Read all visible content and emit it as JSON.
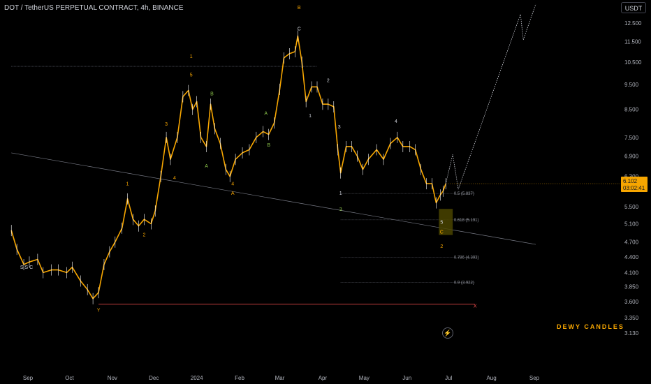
{
  "header": {
    "title": "DOT / TetherUS PERPETUAL CONTRACT, 4h, BINANCE",
    "currency": "USDT"
  },
  "brand": "DEWY CANDLES",
  "icons": {
    "lightning": "lightning-icon"
  },
  "colors": {
    "candle": "#f7a600",
    "wick": "#ffffff",
    "projection": "#d1d4dc",
    "trendline": "#787b86",
    "invalidation": "#ff5252",
    "box": "#4a4400",
    "price_label_bg": "#f7a600"
  },
  "chart_data": {
    "type": "line",
    "title": "DOT / TetherUS PERPETUAL CONTRACT, 4h, BINANCE",
    "ylabel": "USDT",
    "y_scale": "log",
    "ylim": [
      3.0,
      13.5
    ],
    "y_ticks": [
      "12.500",
      "11.500",
      "10.500",
      "9.500",
      "8.500",
      "7.500",
      "6.900",
      "6.300",
      "5.500",
      "5.100",
      "4.700",
      "4.400",
      "4.100",
      "3.850",
      "3.600",
      "3.350",
      "3.130"
    ],
    "x_ticks": [
      "Sep",
      "Oct",
      "Nov",
      "Dec",
      "2024",
      "Feb",
      "Mar",
      "Apr",
      "May",
      "Jun",
      "Jul",
      "Aug",
      "Sep"
    ],
    "current_price": {
      "price": "6.102",
      "countdown": "03:02:41"
    },
    "series": [
      {
        "values": [
          [
            "2023-08-20",
            4.95
          ],
          [
            "2023-08-24",
            4.55
          ],
          [
            "2023-08-29",
            4.25
          ],
          [
            "2023-09-02",
            4.3
          ],
          [
            "2023-09-08",
            4.35
          ],
          [
            "2023-09-12",
            4.1
          ],
          [
            "2023-09-18",
            4.15
          ],
          [
            "2023-09-23",
            4.15
          ],
          [
            "2023-09-29",
            4.1
          ],
          [
            "2023-10-03",
            4.2
          ],
          [
            "2023-10-09",
            3.95
          ],
          [
            "2023-10-14",
            3.8
          ],
          [
            "2023-10-18",
            3.65
          ],
          [
            "2023-10-22",
            3.75
          ],
          [
            "2023-10-26",
            4.25
          ],
          [
            "2023-10-30",
            4.5
          ],
          [
            "2023-11-03",
            4.7
          ],
          [
            "2023-11-08",
            5.0
          ],
          [
            "2023-11-12",
            5.7
          ],
          [
            "2023-11-16",
            5.2
          ],
          [
            "2023-11-20",
            5.05
          ],
          [
            "2023-11-24",
            5.2
          ],
          [
            "2023-11-29",
            5.1
          ],
          [
            "2023-12-02",
            5.4
          ],
          [
            "2023-12-06",
            6.3
          ],
          [
            "2023-12-10",
            7.5
          ],
          [
            "2023-12-13",
            6.8
          ],
          [
            "2023-12-18",
            7.5
          ],
          [
            "2023-12-22",
            9.0
          ],
          [
            "2023-12-26",
            9.25
          ],
          [
            "2023-12-29",
            8.5
          ],
          [
            "2024-01-01",
            8.8
          ],
          [
            "2024-01-04",
            7.5
          ],
          [
            "2024-01-08",
            7.2
          ],
          [
            "2024-01-11",
            8.7
          ],
          [
            "2024-01-14",
            7.8
          ],
          [
            "2024-01-18",
            7.3
          ],
          [
            "2024-01-22",
            6.5
          ],
          [
            "2024-01-25",
            6.3
          ],
          [
            "2024-01-29",
            6.8
          ],
          [
            "2024-02-03",
            7.0
          ],
          [
            "2024-02-08",
            7.1
          ],
          [
            "2024-02-13",
            7.5
          ],
          [
            "2024-02-18",
            7.7
          ],
          [
            "2024-02-22",
            7.6
          ],
          [
            "2024-02-26",
            8.0
          ],
          [
            "2024-03-01",
            9.3
          ],
          [
            "2024-03-04",
            10.7
          ],
          [
            "2024-03-08",
            10.9
          ],
          [
            "2024-03-12",
            11.0
          ],
          [
            "2024-03-14",
            11.8
          ],
          [
            "2024-03-17",
            10.5
          ],
          [
            "2024-03-20",
            8.8
          ],
          [
            "2024-03-24",
            9.4
          ],
          [
            "2024-03-28",
            9.4
          ],
          [
            "2024-04-01",
            8.7
          ],
          [
            "2024-04-05",
            8.7
          ],
          [
            "2024-04-09",
            8.6
          ],
          [
            "2024-04-12",
            7.1
          ],
          [
            "2024-04-14",
            6.4
          ],
          [
            "2024-04-18",
            7.2
          ],
          [
            "2024-04-22",
            7.2
          ],
          [
            "2024-04-26",
            6.9
          ],
          [
            "2024-04-30",
            6.5
          ],
          [
            "2024-05-04",
            6.8
          ],
          [
            "2024-05-10",
            7.1
          ],
          [
            "2024-05-15",
            6.8
          ],
          [
            "2024-05-20",
            7.3
          ],
          [
            "2024-05-25",
            7.5
          ],
          [
            "2024-05-29",
            7.2
          ],
          [
            "2024-06-03",
            7.2
          ],
          [
            "2024-06-07",
            7.1
          ],
          [
            "2024-06-11",
            6.5
          ],
          [
            "2024-06-15",
            6.1
          ],
          [
            "2024-06-19",
            6.1
          ],
          [
            "2024-06-22",
            5.6
          ],
          [
            "2024-06-25",
            5.8
          ],
          [
            "2024-06-27",
            5.9
          ],
          [
            "2024-06-29",
            6.1
          ]
        ]
      }
    ],
    "projection": [
      [
        "2024-06-29",
        6.1
      ],
      [
        "2024-07-04",
        6.95
      ],
      [
        "2024-07-08",
        5.95
      ],
      [
        "2024-08-22",
        13.0
      ],
      [
        "2024-08-24",
        11.6
      ],
      [
        "2024-09-02",
        13.6
      ]
    ],
    "horizontal_levels": [
      {
        "label": "",
        "price": 10.3,
        "color": "#787b86",
        "x_from": "2023-08-20",
        "x_to": "2024-03-28"
      },
      {
        "label": "X",
        "price": 3.56,
        "color": "#ff5252",
        "x_from": "2023-10-22",
        "x_to": "2024-07-20"
      }
    ],
    "fib_levels": [
      {
        "label": "0.5 (5.837)",
        "price": 5.837
      },
      {
        "label": "0.618 (5.191)",
        "price": 5.191
      },
      {
        "label": "0.786 (4.393)",
        "price": 4.393
      },
      {
        "label": "0.9 (3.922)",
        "price": 3.922
      }
    ],
    "fib_x": [
      "2024-04-14",
      "2024-07-20"
    ],
    "trendline": [
      [
        "2023-08-20",
        7.0
      ],
      [
        "2024-09-02",
        4.65
      ]
    ],
    "target_box": {
      "x": [
        "2024-06-24",
        "2024-07-04"
      ],
      "y": [
        4.85,
        5.45
      ]
    },
    "wave_labels": [
      {
        "text": "Y",
        "x": "2023-10-22",
        "y": 3.44,
        "color": "orange"
      },
      {
        "text": "1",
        "x": "2023-11-12",
        "y": 6.05,
        "color": "orange"
      },
      {
        "text": "2",
        "x": "2023-11-24",
        "y": 4.82,
        "color": "orange"
      },
      {
        "text": "3",
        "x": "2023-12-10",
        "y": 7.9,
        "color": "orange"
      },
      {
        "text": "4",
        "x": "2023-12-16",
        "y": 6.22,
        "color": "orange"
      },
      {
        "text": "5",
        "x": "2023-12-28",
        "y": 9.85,
        "color": "orange"
      },
      {
        "text": "1",
        "x": "2023-12-28",
        "y": 10.7,
        "color": "orange"
      },
      {
        "text": "B",
        "x": "2024-01-12",
        "y": 9.05,
        "color": "green"
      },
      {
        "text": "A",
        "x": "2024-01-08",
        "y": 6.55,
        "color": "green"
      },
      {
        "text": "4",
        "x": "2024-01-27",
        "y": 6.05,
        "color": "orange"
      },
      {
        "text": "A",
        "x": "2024-01-27",
        "y": 5.8,
        "color": "orange"
      },
      {
        "text": "A",
        "x": "2024-02-20",
        "y": 8.3,
        "color": "green"
      },
      {
        "text": "B",
        "x": "2024-02-22",
        "y": 7.2,
        "color": "green"
      },
      {
        "text": "B",
        "x": "2024-03-15",
        "y": 13.3,
        "color": "orange"
      },
      {
        "text": "C",
        "x": "2024-03-15",
        "y": 12.1,
        "color": "white"
      },
      {
        "text": "1",
        "x": "2024-03-23",
        "y": 8.2,
        "color": "white"
      },
      {
        "text": "2",
        "x": "2024-04-05",
        "y": 9.6,
        "color": "white"
      },
      {
        "text": "3",
        "x": "2024-04-13",
        "y": 7.8,
        "color": "white"
      },
      {
        "text": "1",
        "x": "2024-04-14",
        "y": 5.8,
        "color": "white"
      },
      {
        "text": "3",
        "x": "2024-04-14",
        "y": 5.4,
        "color": "green"
      },
      {
        "text": "4",
        "x": "2024-05-24",
        "y": 8.0,
        "color": "white"
      },
      {
        "text": "5",
        "x": "2024-06-26",
        "y": 5.1,
        "color": "white"
      },
      {
        "text": "C",
        "x": "2024-06-26",
        "y": 4.88,
        "color": "orange"
      },
      {
        "text": "2",
        "x": "2024-06-26",
        "y": 4.58,
        "color": "orange"
      },
      {
        "text": "S S C",
        "x": "2023-08-31",
        "y": 4.17,
        "color": "white"
      }
    ]
  }
}
